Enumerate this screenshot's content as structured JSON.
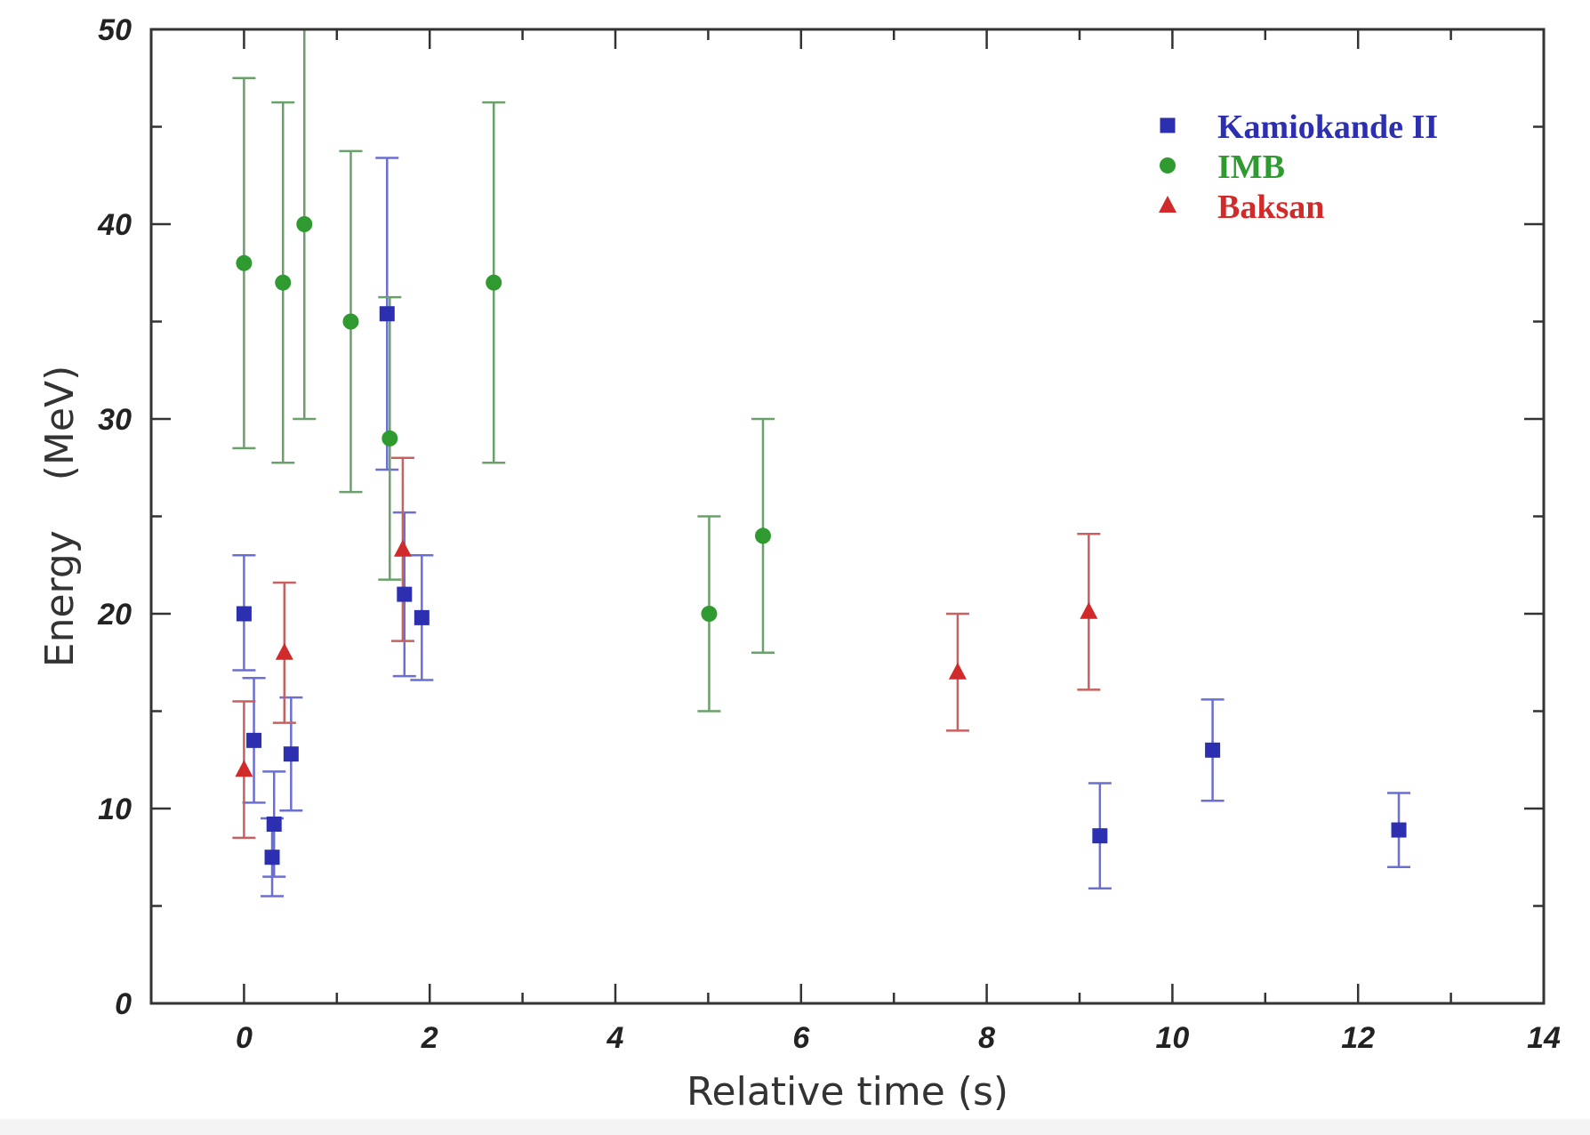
{
  "chart_data": {
    "type": "scatter",
    "title": "",
    "xlabel": "Relative time (s)",
    "ylabel": "Energy    (MeV)",
    "xlim": [
      -1,
      14
    ],
    "ylim": [
      0,
      50
    ],
    "xticks": [
      0,
      2,
      4,
      6,
      8,
      10,
      12,
      14
    ],
    "yticks": [
      0,
      10,
      20,
      30,
      40,
      50
    ],
    "x_minor_step": 1,
    "y_minor_step": 5,
    "grid": false,
    "legend_position": "top-right",
    "series": [
      {
        "name": "Kamiokande II",
        "marker": "square",
        "color": "#2b2fb0",
        "errorbar_color": "#6b6fd0",
        "points": [
          {
            "x": 0.0,
            "y": 20.0,
            "ylo": 17.1,
            "yhi": 23.0
          },
          {
            "x": 0.107,
            "y": 13.5,
            "ylo": 10.3,
            "yhi": 16.7
          },
          {
            "x": 0.303,
            "y": 7.5,
            "ylo": 5.5,
            "yhi": 9.5
          },
          {
            "x": 0.324,
            "y": 9.2,
            "ylo": 6.5,
            "yhi": 11.9
          },
          {
            "x": 0.507,
            "y": 12.8,
            "ylo": 9.9,
            "yhi": 15.7
          },
          {
            "x": 1.541,
            "y": 35.4,
            "ylo": 27.4,
            "yhi": 43.4
          },
          {
            "x": 1.728,
            "y": 21.0,
            "ylo": 16.8,
            "yhi": 25.2
          },
          {
            "x": 1.915,
            "y": 19.8,
            "ylo": 16.6,
            "yhi": 23.0
          },
          {
            "x": 9.219,
            "y": 8.6,
            "ylo": 5.9,
            "yhi": 11.3
          },
          {
            "x": 10.433,
            "y": 13.0,
            "ylo": 10.4,
            "yhi": 15.6
          },
          {
            "x": 12.439,
            "y": 8.9,
            "ylo": 7.0,
            "yhi": 10.8
          }
        ]
      },
      {
        "name": "IMB",
        "marker": "circle",
        "color": "#2f9a2f",
        "errorbar_color": "#6aa06a",
        "points": [
          {
            "x": 0.0,
            "y": 38.0,
            "ylo": 28.5,
            "yhi": 47.5
          },
          {
            "x": 0.42,
            "y": 37.0,
            "ylo": 27.75,
            "yhi": 46.25
          },
          {
            "x": 0.65,
            "y": 40.0,
            "ylo": 30.0,
            "yhi": 50.0
          },
          {
            "x": 1.15,
            "y": 35.0,
            "ylo": 26.25,
            "yhi": 43.75
          },
          {
            "x": 1.57,
            "y": 29.0,
            "ylo": 21.75,
            "yhi": 36.25
          },
          {
            "x": 2.69,
            "y": 37.0,
            "ylo": 27.75,
            "yhi": 46.25
          },
          {
            "x": 5.01,
            "y": 20.0,
            "ylo": 15.0,
            "yhi": 25.0
          },
          {
            "x": 5.59,
            "y": 24.0,
            "ylo": 18.0,
            "yhi": 30.0
          }
        ]
      },
      {
        "name": "Baksan",
        "marker": "triangle",
        "color": "#d02a2a",
        "errorbar_color": "#c86060",
        "points": [
          {
            "x": 0.0,
            "y": 12.0,
            "ylo": 8.5,
            "yhi": 15.5
          },
          {
            "x": 0.435,
            "y": 18.0,
            "ylo": 14.4,
            "yhi": 21.6
          },
          {
            "x": 1.71,
            "y": 23.3,
            "ylo": 18.6,
            "yhi": 28.0
          },
          {
            "x": 7.687,
            "y": 17.0,
            "ylo": 14.0,
            "yhi": 20.0
          },
          {
            "x": 9.099,
            "y": 20.1,
            "ylo": 16.1,
            "yhi": 24.1
          }
        ]
      }
    ]
  }
}
